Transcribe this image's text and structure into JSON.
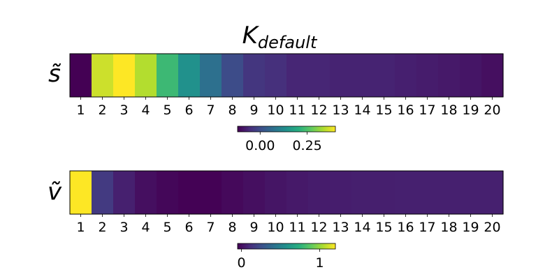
{
  "chart_data": [
    {
      "type": "heatmap",
      "title": "K",
      "title_subscript": "default",
      "row_label": "s̃",
      "categories": [
        "1",
        "2",
        "3",
        "4",
        "5",
        "6",
        "7",
        "8",
        "9",
        "10",
        "11",
        "12",
        "13",
        "14",
        "15",
        "16",
        "17",
        "18",
        "19",
        "20"
      ],
      "values": [
        -0.12,
        0.36,
        0.4,
        0.34,
        0.23,
        0.14,
        0.07,
        0.0,
        -0.04,
        -0.05,
        -0.065,
        -0.065,
        -0.07,
        -0.07,
        -0.07,
        -0.075,
        -0.08,
        -0.085,
        -0.09,
        -0.1
      ],
      "colormap": "viridis",
      "clim": [
        -0.12,
        0.4
      ],
      "colorbar_ticks": [
        0.0,
        0.25
      ],
      "colorbar_tick_labels": [
        "0.00",
        "0.25"
      ]
    },
    {
      "type": "heatmap",
      "row_label": "ṽ",
      "categories": [
        "1",
        "2",
        "3",
        "4",
        "5",
        "6",
        "7",
        "8",
        "9",
        "10",
        "11",
        "12",
        "13",
        "14",
        "15",
        "16",
        "17",
        "18",
        "19",
        "20"
      ],
      "values": [
        1.2,
        0.16,
        0.06,
        0.0,
        -0.03,
        -0.045,
        -0.045,
        -0.02,
        0.0,
        0.02,
        0.035,
        0.045,
        0.05,
        0.055,
        0.055,
        0.06,
        0.06,
        0.06,
        0.06,
        0.06
      ],
      "colormap": "viridis",
      "clim": [
        -0.05,
        1.2
      ],
      "colorbar_ticks": [
        0,
        1
      ],
      "colorbar_tick_labels": [
        "0",
        "1"
      ]
    }
  ]
}
